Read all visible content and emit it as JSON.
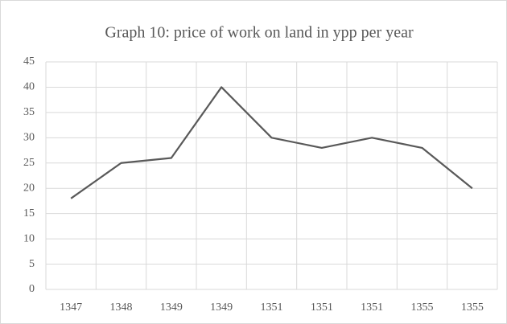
{
  "chart_data": {
    "type": "line",
    "title": "Graph 10: price of work on land in ypp per year",
    "categories": [
      "1347",
      "1348",
      "1349",
      "1349",
      "1351",
      "1351",
      "1351",
      "1355",
      "1355"
    ],
    "values": [
      18,
      25,
      26,
      40,
      30,
      28,
      30,
      28,
      20
    ],
    "color": "#595959",
    "ylim": [
      0,
      45
    ],
    "yticks": [
      0,
      5,
      10,
      15,
      20,
      25,
      30,
      35,
      40,
      45
    ],
    "grid": true
  }
}
